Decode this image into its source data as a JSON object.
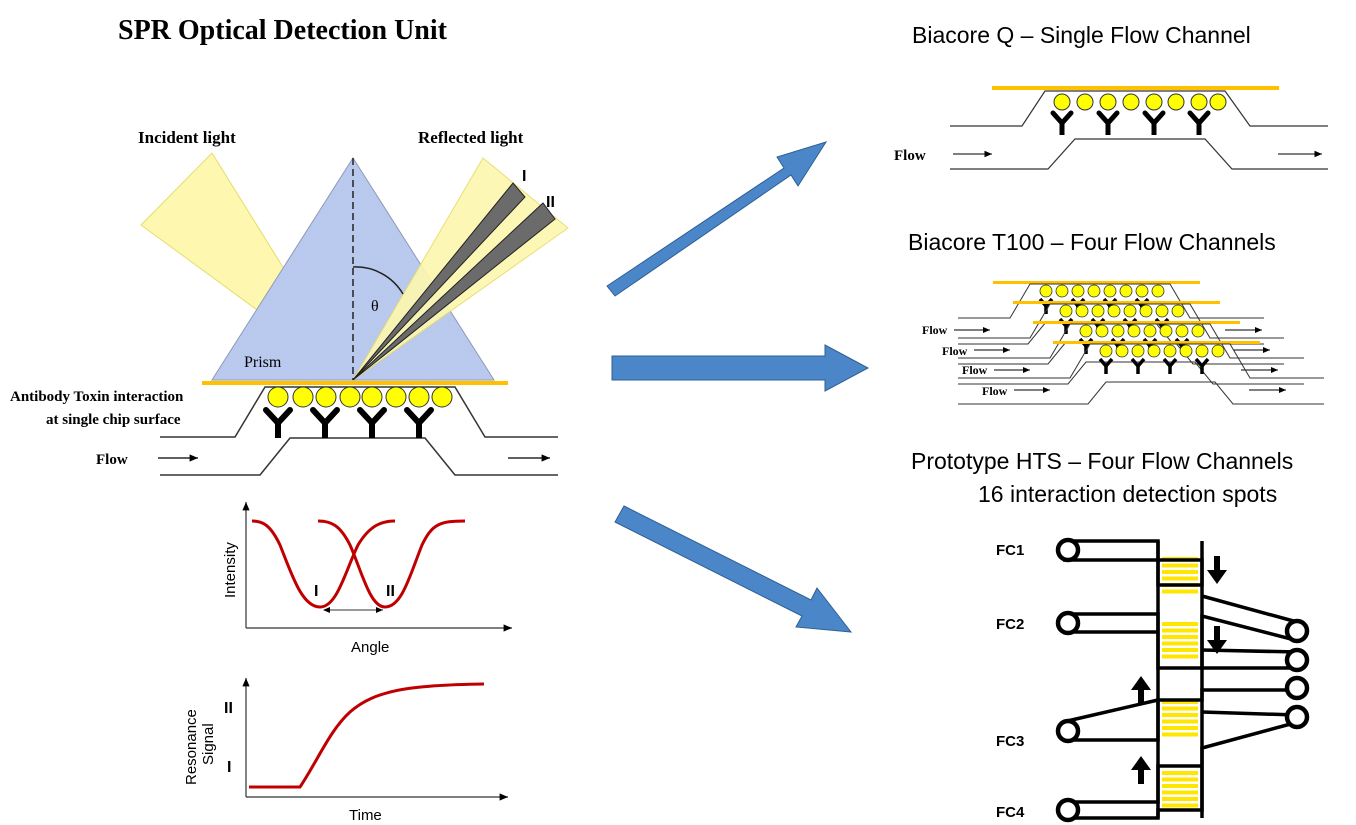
{
  "title": "SPR Optical Detection Unit",
  "prism_panel": {
    "incident_label": "Incident light",
    "reflected_label": "Reflected light",
    "beam_I": "I",
    "beam_II": "II",
    "theta": "θ",
    "prism_label": "Prism",
    "interaction_line1": "Antibody Toxin interaction",
    "interaction_line2": "at single chip surface",
    "flow_label": "Flow"
  },
  "intensity_plot": {
    "ylabel": "Intensity",
    "xlabel": "Angle",
    "dip_I": "I",
    "dip_II": "II"
  },
  "sensorgram": {
    "ylabel_line1": "Resonance",
    "ylabel_line2": "Signal",
    "xlabel": "Time",
    "tick_II": "II",
    "tick_I": "I"
  },
  "biacore_q": {
    "title": "Biacore Q – Single Flow Channel",
    "flow_label": "Flow"
  },
  "biacore_t100": {
    "title": "Biacore T100 – Four Flow Channels",
    "flow_labels": [
      "Flow",
      "Flow",
      "Flow",
      "Flow"
    ]
  },
  "prototype_hts": {
    "title_line1": "Prototype HTS – Four Flow Channels",
    "title_line2": "16 interaction detection spots",
    "channels": [
      "FC1",
      "FC2",
      "FC3",
      "FC4"
    ]
  },
  "colors": {
    "gold": "#ffc000",
    "arrow_blue": "#4a86c8",
    "curve_red": "#c00000",
    "beam_yellow": "#fdf7b0",
    "prism_blue": "#b7c8ee",
    "spot_yellow": "#ffff00",
    "stripe_yellow": "#ffe600"
  }
}
